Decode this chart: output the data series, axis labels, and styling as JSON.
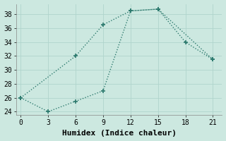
{
  "line1_x": [
    0,
    6,
    9,
    12,
    15,
    18,
    21
  ],
  "line1_y": [
    26,
    32,
    36.5,
    38.5,
    38.75,
    34,
    31.5
  ],
  "line2_x": [
    0,
    3,
    6,
    9,
    12,
    15,
    21
  ],
  "line2_y": [
    26,
    24,
    25.5,
    27,
    38.5,
    38.75,
    31.5
  ],
  "line_color": "#2d7a6e",
  "marker": "+",
  "marker_size": 5,
  "marker_lw": 1.2,
  "linewidth": 1.0,
  "linestyle": ":",
  "xlabel": "Humidex (Indice chaleur)",
  "xlim": [
    -0.5,
    22
  ],
  "ylim": [
    23.5,
    39.5
  ],
  "xticks": [
    0,
    3,
    6,
    9,
    12,
    15,
    18,
    21
  ],
  "yticks": [
    24,
    26,
    28,
    30,
    32,
    34,
    36,
    38
  ],
  "bg_color": "#cce8e0",
  "grid_color": "#b0d4cc",
  "tick_fontsize": 7,
  "xlabel_fontsize": 8
}
